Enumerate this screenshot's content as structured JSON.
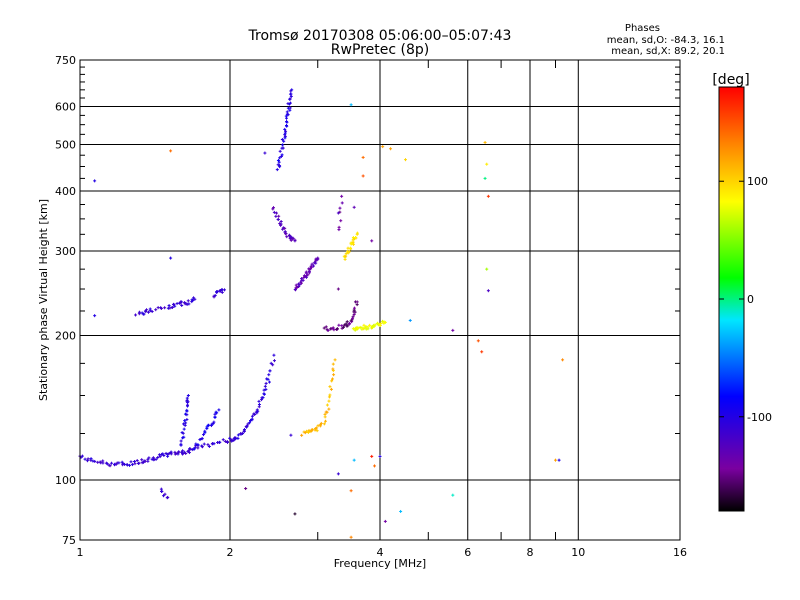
{
  "chart_data": {
    "type": "scatter",
    "title": "Tromsø 20170308 05:06:00–05:07:43",
    "subtitle": "RwPretec (8p)",
    "phases_header": "Phases",
    "phases_line1": "mean, sd,O: -84.3, 16.1",
    "phases_line2": "mean, sd,X:  89.2, 20.1",
    "xlabel": "Frequency [MHz]",
    "ylabel": "Stationary phase Virtual Height [km]",
    "x_scale": "log",
    "y_scale": "log",
    "xlim": [
      1,
      16
    ],
    "ylim": [
      75,
      750
    ],
    "x_ticks": [
      1,
      2,
      4,
      6,
      8,
      10,
      16
    ],
    "x_tick_labels": [
      "1",
      "2",
      "4",
      "6",
      "8",
      "10",
      "16"
    ],
    "x_minor_ticks": [
      3,
      5,
      7,
      9
    ],
    "y_ticks": [
      75,
      100,
      200,
      300,
      400,
      500,
      600,
      750
    ],
    "y_tick_labels": [
      "75",
      "100",
      "200",
      "300",
      "400",
      "500",
      "600",
      "750"
    ],
    "y_minor_ticks": [
      125,
      150,
      175,
      225,
      250,
      275,
      325,
      350,
      375,
      425,
      450,
      475,
      525,
      550,
      575,
      625,
      650,
      675,
      700,
      725
    ],
    "grid": true,
    "colorbar": {
      "label": "[deg]",
      "range": [
        -180,
        180
      ],
      "tick_values": [
        100,
        0,
        -100
      ],
      "tick_labels": [
        "100",
        "0",
        "-100"
      ]
    },
    "traces": [
      {
        "name": "",
        "phase": -110,
        "x": [
          1.0,
          1.05,
          1.1,
          1.15,
          1.2,
          1.25,
          1.3,
          1.35,
          1.4,
          1.45,
          1.5,
          1.55,
          1.6,
          1.65,
          1.7,
          1.8,
          1.9,
          2.0,
          2.05
        ],
        "y": [
          112,
          110,
          109,
          108,
          108,
          108,
          109,
          110,
          111,
          112,
          113,
          114,
          114,
          115,
          117,
          118,
          120,
          121,
          122
        ]
      },
      {
        "name": "",
        "phase": -105,
        "x": [
          2.05,
          2.1,
          2.15,
          2.2,
          2.25,
          2.3,
          2.35,
          2.4,
          2.45
        ],
        "y": [
          122,
          124,
          128,
          133,
          138,
          145,
          153,
          165,
          182
        ]
      },
      {
        "name": "",
        "phase": -100,
        "x": [
          1.6,
          1.61,
          1.63,
          1.64,
          1.65
        ],
        "y": [
          118,
          126,
          135,
          143,
          150
        ]
      },
      {
        "name": "",
        "phase": -95,
        "x": [
          1.7,
          1.75,
          1.8,
          1.85,
          1.9
        ],
        "y": [
          117,
          122,
          128,
          133,
          140
        ]
      },
      {
        "name": "",
        "phase": -100,
        "x": [
          2.5,
          2.52,
          2.55,
          2.58,
          2.6,
          2.62,
          2.64,
          2.66
        ],
        "y": [
          445,
          470,
          500,
          530,
          560,
          590,
          620,
          650
        ]
      },
      {
        "name": "",
        "phase": -110,
        "x": [
          1.3,
          1.35,
          1.4,
          1.5,
          1.55,
          1.6,
          1.65,
          1.7
        ],
        "y": [
          222,
          224,
          226,
          228,
          231,
          233,
          235,
          238
        ]
      },
      {
        "name": "",
        "phase": -110,
        "x": [
          1.85,
          1.9,
          1.95
        ],
        "y": [
          243,
          246,
          249
        ]
      },
      {
        "name": "",
        "phase": -130,
        "x": [
          2.7,
          2.75,
          2.8,
          2.85,
          2.9,
          2.95,
          3.0
        ],
        "y": [
          250,
          255,
          262,
          268,
          275,
          282,
          290
        ]
      },
      {
        "name": "",
        "phase": -125,
        "x": [
          2.45,
          2.5,
          2.55,
          2.6,
          2.65,
          2.7
        ],
        "y": [
          370,
          350,
          335,
          325,
          318,
          315
        ]
      },
      {
        "name": "",
        "phase": -150,
        "x": [
          3.1,
          3.2,
          3.3,
          3.4,
          3.5,
          3.55,
          3.6
        ],
        "y": [
          207,
          207,
          208,
          210,
          214,
          222,
          235
        ]
      },
      {
        "name": "",
        "phase": 80,
        "x": [
          3.55,
          3.6,
          3.7,
          3.8,
          3.9,
          4.0,
          4.1
        ],
        "y": [
          207,
          207,
          208,
          208,
          210,
          211,
          213
        ]
      },
      {
        "name": "",
        "phase": 95,
        "x": [
          3.4,
          3.45,
          3.5,
          3.55,
          3.6
        ],
        "y": [
          290,
          300,
          310,
          318,
          325
        ]
      },
      {
        "name": "",
        "phase": 110,
        "x": [
          2.8,
          2.9,
          3.0,
          3.1,
          3.15,
          3.2,
          3.25
        ],
        "y": [
          125,
          126,
          128,
          133,
          143,
          160,
          178
        ]
      },
      {
        "name": "",
        "phase": -140,
        "x": [
          3.3,
          3.35
        ],
        "y": [
          330,
          390
        ]
      },
      {
        "name": "",
        "phase": -115,
        "x": [
          1.45,
          1.5
        ],
        "y": [
          95,
          92
        ]
      }
    ],
    "scatter_points": [
      {
        "x": 1.07,
        "y": 420,
        "phase": -100
      },
      {
        "x": 1.07,
        "y": 220,
        "phase": -100
      },
      {
        "x": 1.52,
        "y": 485,
        "phase": 140
      },
      {
        "x": 1.52,
        "y": 290,
        "phase": -100
      },
      {
        "x": 2.35,
        "y": 480,
        "phase": -110
      },
      {
        "x": 3.5,
        "y": 605,
        "phase": -30
      },
      {
        "x": 3.7,
        "y": 470,
        "phase": 140
      },
      {
        "x": 3.7,
        "y": 430,
        "phase": 150
      },
      {
        "x": 4.2,
        "y": 490,
        "phase": 120
      },
      {
        "x": 4.5,
        "y": 465,
        "phase": 100
      },
      {
        "x": 4.05,
        "y": 495,
        "phase": 120
      },
      {
        "x": 3.55,
        "y": 370,
        "phase": -130
      },
      {
        "x": 3.3,
        "y": 360,
        "phase": -120
      },
      {
        "x": 3.85,
        "y": 315,
        "phase": -140
      },
      {
        "x": 3.3,
        "y": 250,
        "phase": -150
      },
      {
        "x": 4.6,
        "y": 215,
        "phase": -40
      },
      {
        "x": 5.6,
        "y": 205,
        "phase": -140
      },
      {
        "x": 6.3,
        "y": 195,
        "phase": 150
      },
      {
        "x": 6.4,
        "y": 185,
        "phase": 160
      },
      {
        "x": 6.5,
        "y": 505,
        "phase": 110
      },
      {
        "x": 6.55,
        "y": 455,
        "phase": 90
      },
      {
        "x": 6.5,
        "y": 425,
        "phase": 0
      },
      {
        "x": 6.6,
        "y": 390,
        "phase": 160
      },
      {
        "x": 6.55,
        "y": 275,
        "phase": 60
      },
      {
        "x": 6.6,
        "y": 248,
        "phase": -120
      },
      {
        "x": 9.3,
        "y": 178,
        "phase": 130
      },
      {
        "x": 9.0,
        "y": 110,
        "phase": 120
      },
      {
        "x": 9.15,
        "y": 110,
        "phase": -100
      },
      {
        "x": 3.3,
        "y": 103,
        "phase": -110
      },
      {
        "x": 3.5,
        "y": 95,
        "phase": 140
      },
      {
        "x": 3.9,
        "y": 107,
        "phase": 140
      },
      {
        "x": 4.1,
        "y": 82,
        "phase": -140
      },
      {
        "x": 4.4,
        "y": 86,
        "phase": -30
      },
      {
        "x": 5.6,
        "y": 93,
        "phase": -10
      },
      {
        "x": 2.15,
        "y": 96,
        "phase": -150
      },
      {
        "x": 2.7,
        "y": 85,
        "phase": -170
      },
      {
        "x": 3.5,
        "y": 76,
        "phase": 130
      },
      {
        "x": 3.85,
        "y": 112,
        "phase": 170
      },
      {
        "x": 4.0,
        "y": 112,
        "phase": -100
      },
      {
        "x": 3.55,
        "y": 110,
        "phase": -30
      },
      {
        "x": 2.4,
        "y": 160,
        "phase": -100
      },
      {
        "x": 2.65,
        "y": 124,
        "phase": -110
      }
    ]
  }
}
